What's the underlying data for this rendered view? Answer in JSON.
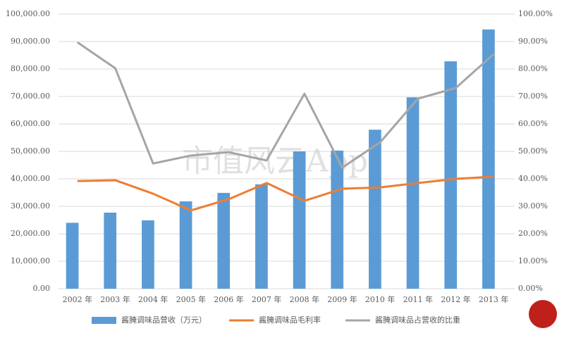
{
  "chart_data": {
    "type": "bar_line",
    "categories": [
      "2002 年",
      "2003 年",
      "2004 年",
      "2005 年",
      "2006 年",
      "2007 年",
      "2008 年",
      "2009 年",
      "2010 年",
      "2011 年",
      "2012 年",
      "2013 年"
    ],
    "series": [
      {
        "name": "酱腌调味品营收（万元）",
        "type": "bar",
        "color": "#5b9bd5",
        "values": [
          24000,
          27700,
          24900,
          31800,
          34900,
          38000,
          50000,
          50300,
          57900,
          69700,
          82800,
          94400
        ]
      },
      {
        "name": "酱腌调味品毛利率",
        "type": "line",
        "axis": "y2",
        "color": "#ed7d31",
        "values": [
          39.2,
          39.5,
          34.6,
          28.5,
          32.6,
          38.5,
          32.0,
          36.4,
          36.9,
          38.5,
          40.0,
          40.8
        ]
      },
      {
        "name": "酱腌调味品占营收的比重",
        "type": "line",
        "axis": "y2",
        "color": "#a5a5a5",
        "values": [
          89.7,
          80.3,
          45.6,
          48.5,
          49.7,
          46.7,
          71.0,
          44.1,
          53.3,
          69.2,
          73.1,
          85.4
        ]
      }
    ],
    "ylim": [
      0,
      100000
    ],
    "yticks": [
      {
        "value": 0,
        "label": "0.00"
      },
      {
        "value": 10000,
        "label": "10,000.00"
      },
      {
        "value": 20000,
        "label": "20,000.00"
      },
      {
        "value": 30000,
        "label": "30,000.00"
      },
      {
        "value": 40000,
        "label": "40,000.00"
      },
      {
        "value": 50000,
        "label": "50,000.00"
      },
      {
        "value": 60000,
        "label": "60,000.00"
      },
      {
        "value": 70000,
        "label": "70,000.00"
      },
      {
        "value": 80000,
        "label": "80,000.00"
      },
      {
        "value": 90000,
        "label": "90,000.00"
      },
      {
        "value": 100000,
        "label": "100,000.00"
      }
    ],
    "y2lim": [
      0,
      100
    ],
    "y2ticks": [
      {
        "value": 0,
        "label": "0.00%"
      },
      {
        "value": 10,
        "label": "10.00%"
      },
      {
        "value": 20,
        "label": "20.00%"
      },
      {
        "value": 30,
        "label": "30.00%"
      },
      {
        "value": 40,
        "label": "40.00%"
      },
      {
        "value": 50,
        "label": "50.00%"
      },
      {
        "value": 60,
        "label": "60.00%"
      },
      {
        "value": 70,
        "label": "70.00%"
      },
      {
        "value": 80,
        "label": "80.00%"
      },
      {
        "value": 90,
        "label": "90.00%"
      },
      {
        "value": 100,
        "label": "100.00%"
      }
    ],
    "grid": true,
    "legend": "bottom",
    "watermark": "市值风云App"
  }
}
